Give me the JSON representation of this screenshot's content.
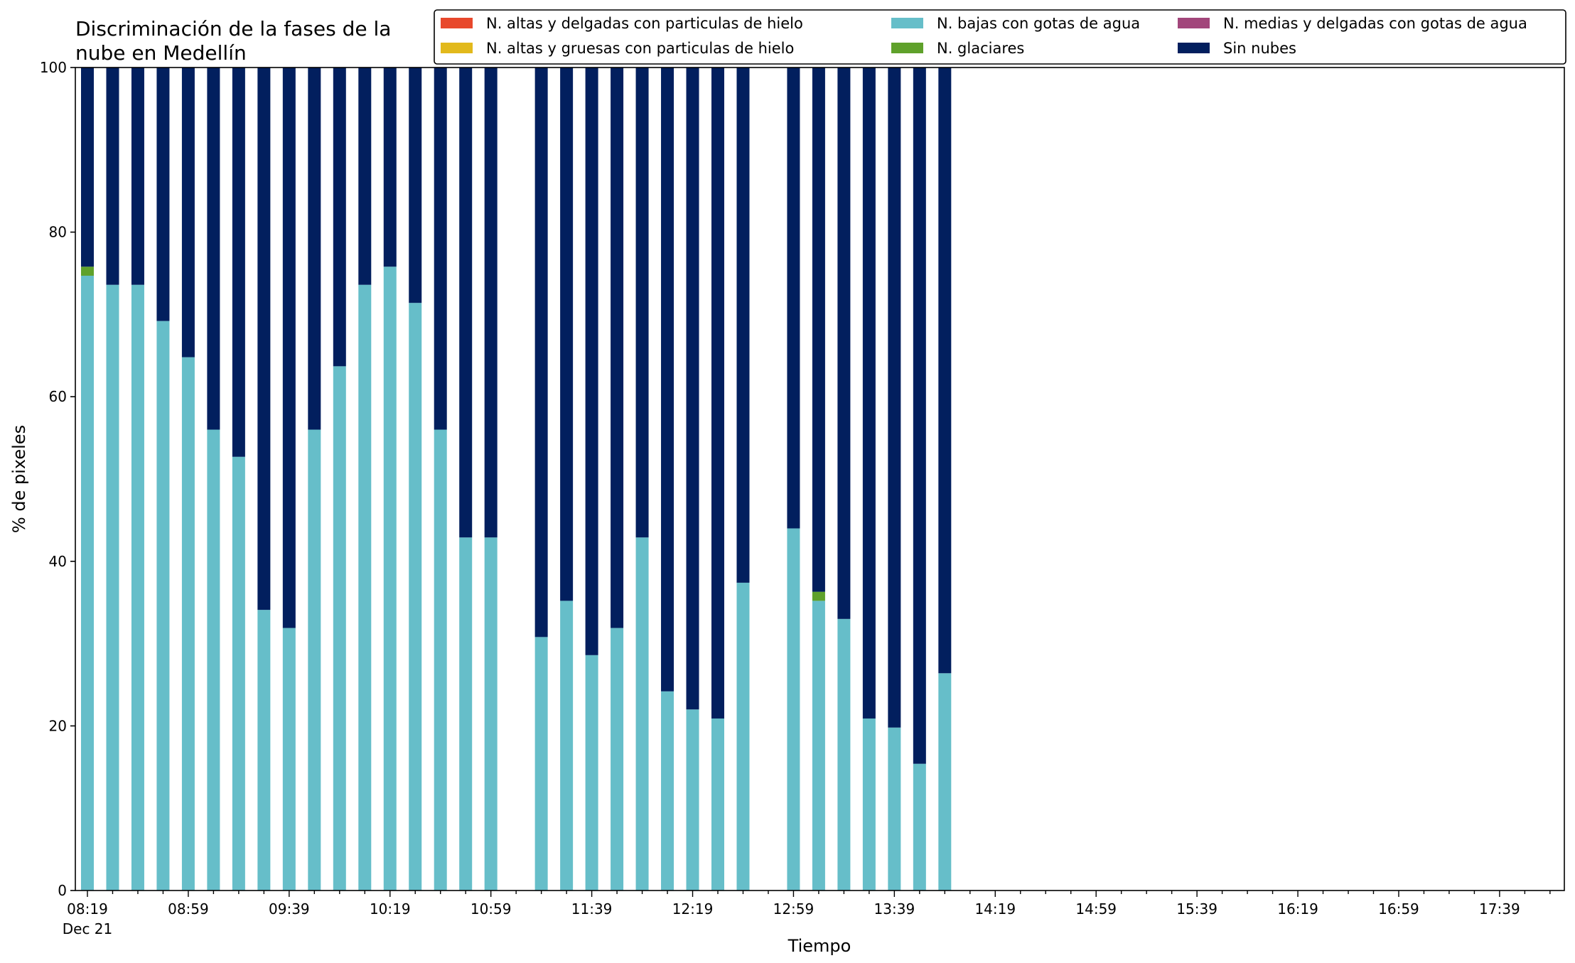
{
  "chart_data": {
    "type": "bar",
    "stacked": true,
    "title_lines": [
      "Discriminación de la fases de la",
      "nube en Medellín"
    ],
    "xlabel": "Tiempo",
    "ylabel": "% de pixeles",
    "ylim": [
      0,
      100
    ],
    "yticks": [
      0,
      20,
      40,
      60,
      80,
      100
    ],
    "x_axis": {
      "start": "08:19",
      "end": "17:59",
      "step_minutes": 10,
      "major_tick_labels": [
        "08:19",
        "08:59",
        "09:39",
        "10:19",
        "10:59",
        "11:39",
        "12:19",
        "12:59",
        "13:39",
        "14:19",
        "14:59",
        "15:39",
        "16:19",
        "16:59",
        "17:39"
      ],
      "date_label": "Dec 21"
    },
    "legend_position": "top",
    "x": [
      "08:19",
      "08:29",
      "08:39",
      "08:49",
      "08:59",
      "09:09",
      "09:19",
      "09:29",
      "09:39",
      "09:49",
      "09:59",
      "10:09",
      "10:19",
      "10:29",
      "10:39",
      "10:49",
      "10:59",
      "11:19",
      "11:29",
      "11:39",
      "11:49",
      "11:59",
      "12:09",
      "12:19",
      "12:29",
      "12:39",
      "12:59",
      "13:09",
      "13:19",
      "13:29",
      "13:39",
      "13:49",
      "13:59"
    ],
    "series": [
      {
        "name": "N. altas y delgadas con particulas de hielo",
        "color": "#e8482c",
        "values": [
          0,
          0,
          0,
          0,
          0,
          0,
          0,
          0,
          0,
          0,
          0,
          0,
          0,
          0,
          0,
          0,
          0,
          0,
          0,
          0,
          0,
          0,
          0,
          0,
          0,
          0,
          0,
          0,
          0,
          0,
          0,
          0,
          0
        ]
      },
      {
        "name": "N. altas y gruesas con particulas de hielo",
        "color": "#e2b91c",
        "values": [
          0,
          0,
          0,
          0,
          0,
          0,
          0,
          0,
          0,
          0,
          0,
          0,
          0,
          0,
          0,
          0,
          0,
          0,
          0,
          0,
          0,
          0,
          0,
          0,
          0,
          0,
          0,
          0,
          0,
          0,
          0,
          0,
          0
        ]
      },
      {
        "name": "N. bajas con gotas de agua",
        "color": "#66bec9",
        "values": [
          74.7,
          73.6,
          73.6,
          69.2,
          64.8,
          56.0,
          52.7,
          34.1,
          31.9,
          56.0,
          63.7,
          73.6,
          75.8,
          71.4,
          56.0,
          42.9,
          42.9,
          30.8,
          35.2,
          28.6,
          31.9,
          42.9,
          24.2,
          22.0,
          20.9,
          37.4,
          44.0,
          35.2,
          33.0,
          20.9,
          19.8,
          15.4,
          26.4
        ]
      },
      {
        "name": "N. glaciares",
        "color": "#5fa12b",
        "values": [
          1.1,
          0,
          0,
          0,
          0,
          0,
          0,
          0,
          0,
          0,
          0,
          0,
          0,
          0,
          0,
          0,
          0,
          0,
          0,
          0,
          0,
          0,
          0,
          0,
          0,
          0,
          0,
          1.1,
          0,
          0,
          0,
          0,
          0
        ]
      },
      {
        "name": "N. medias y delgadas con gotas de agua",
        "color": "#a2467b",
        "values": [
          0,
          0,
          0,
          0,
          0,
          0,
          0,
          0,
          0,
          0,
          0,
          0,
          0,
          0,
          0,
          0,
          0,
          0,
          0,
          0,
          0,
          0,
          0,
          0,
          0,
          0,
          0,
          0,
          0,
          0,
          0,
          0,
          0
        ]
      },
      {
        "name": "Sin nubes",
        "color": "#021f5e",
        "values": [
          24.2,
          26.4,
          26.4,
          30.8,
          35.2,
          44.0,
          47.3,
          65.9,
          68.1,
          44.0,
          36.3,
          26.4,
          24.2,
          28.6,
          44.0,
          57.1,
          57.1,
          69.2,
          64.8,
          71.4,
          68.1,
          57.1,
          75.8,
          78.0,
          79.1,
          62.6,
          56.0,
          63.7,
          67.0,
          79.1,
          80.2,
          84.6,
          73.6
        ]
      }
    ],
    "legend_order": [
      "N. altas y delgadas con particulas de hielo",
      "N. altas y gruesas con particulas de hielo",
      "N. bajas con gotas de agua",
      "N. glaciares",
      "N. medias y delgadas con gotas de agua",
      "Sin nubes"
    ],
    "grid": false
  }
}
